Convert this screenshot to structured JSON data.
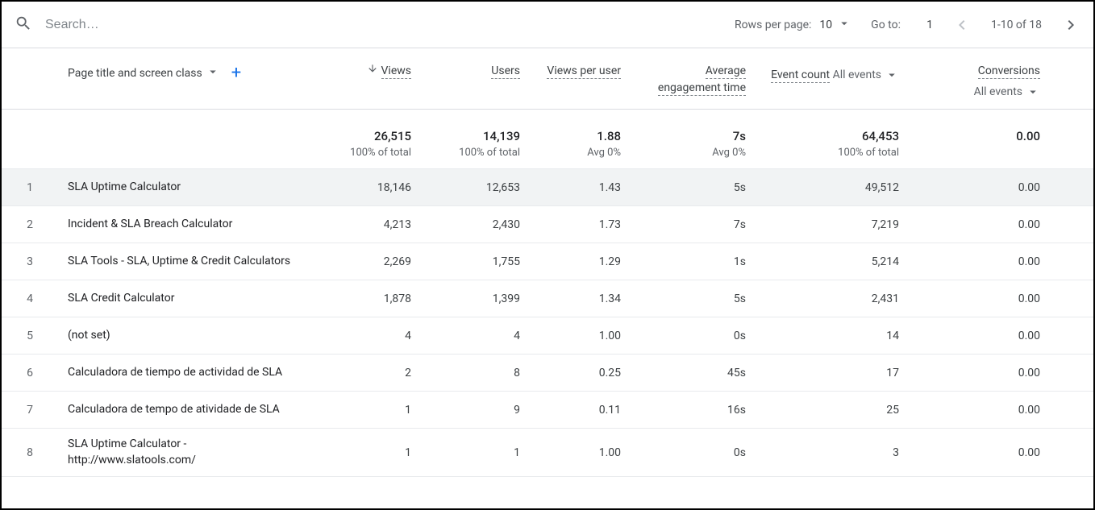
{
  "toolbar": {
    "search_placeholder": "Search…",
    "rows_per_page_label": "Rows per page:",
    "rows_per_page_value": "10",
    "goto_label": "Go to:",
    "goto_value": "1",
    "range_label": "1-10 of 18"
  },
  "columns": {
    "dimension": {
      "label": "Page title and screen class"
    },
    "views": {
      "label": "Views",
      "sorted_desc": true
    },
    "users": {
      "label": "Users"
    },
    "views_per_user": {
      "label": "Views per user"
    },
    "avg_engagement": {
      "label": "Average engagement time"
    },
    "event_count": {
      "label": "Event count",
      "filter": "All events"
    },
    "conversions": {
      "label": "Conversions",
      "filter": "All events"
    }
  },
  "totals": {
    "views": {
      "value": "26,515",
      "sub": "100% of total"
    },
    "users": {
      "value": "14,139",
      "sub": "100% of total"
    },
    "views_per_user": {
      "value": "1.88",
      "sub": "Avg 0%"
    },
    "avg_engagement": {
      "value": "7s",
      "sub": "Avg 0%"
    },
    "event_count": {
      "value": "64,453",
      "sub": "100% of total"
    },
    "conversions": {
      "value": "0.00",
      "sub": ""
    }
  },
  "rows": [
    {
      "idx": "1",
      "title": "SLA Uptime Calculator",
      "views": "18,146",
      "users": "12,653",
      "vpu": "1.43",
      "aet": "5s",
      "ec": "49,512",
      "conv": "0.00",
      "hovered": true
    },
    {
      "idx": "2",
      "title": "Incident & SLA Breach Calculator",
      "views": "4,213",
      "users": "2,430",
      "vpu": "1.73",
      "aet": "7s",
      "ec": "7,219",
      "conv": "0.00"
    },
    {
      "idx": "3",
      "title": "SLA Tools - SLA, Uptime & Credit Calculators",
      "views": "2,269",
      "users": "1,755",
      "vpu": "1.29",
      "aet": "1s",
      "ec": "5,214",
      "conv": "0.00"
    },
    {
      "idx": "4",
      "title": "SLA Credit Calculator",
      "views": "1,878",
      "users": "1,399",
      "vpu": "1.34",
      "aet": "5s",
      "ec": "2,431",
      "conv": "0.00"
    },
    {
      "idx": "5",
      "title": "(not set)",
      "views": "4",
      "users": "4",
      "vpu": "1.00",
      "aet": "0s",
      "ec": "14",
      "conv": "0.00"
    },
    {
      "idx": "6",
      "title": "Calculadora de tiempo de actividad de SLA",
      "views": "2",
      "users": "8",
      "vpu": "0.25",
      "aet": "45s",
      "ec": "17",
      "conv": "0.00"
    },
    {
      "idx": "7",
      "title": "Calculadora de tempo de atividade de SLA",
      "views": "1",
      "users": "9",
      "vpu": "0.11",
      "aet": "16s",
      "ec": "25",
      "conv": "0.00"
    },
    {
      "idx": "8",
      "title": "SLA Uptime Calculator - http://www.slatools.com/",
      "views": "1",
      "users": "1",
      "vpu": "1.00",
      "aet": "0s",
      "ec": "3",
      "conv": "0.00"
    }
  ],
  "colors": {
    "text_primary": "#3c4043",
    "text_secondary": "#5f6368",
    "border": "#dadce0",
    "accent": "#1a73e8",
    "row_hover": "#f1f3f4"
  }
}
